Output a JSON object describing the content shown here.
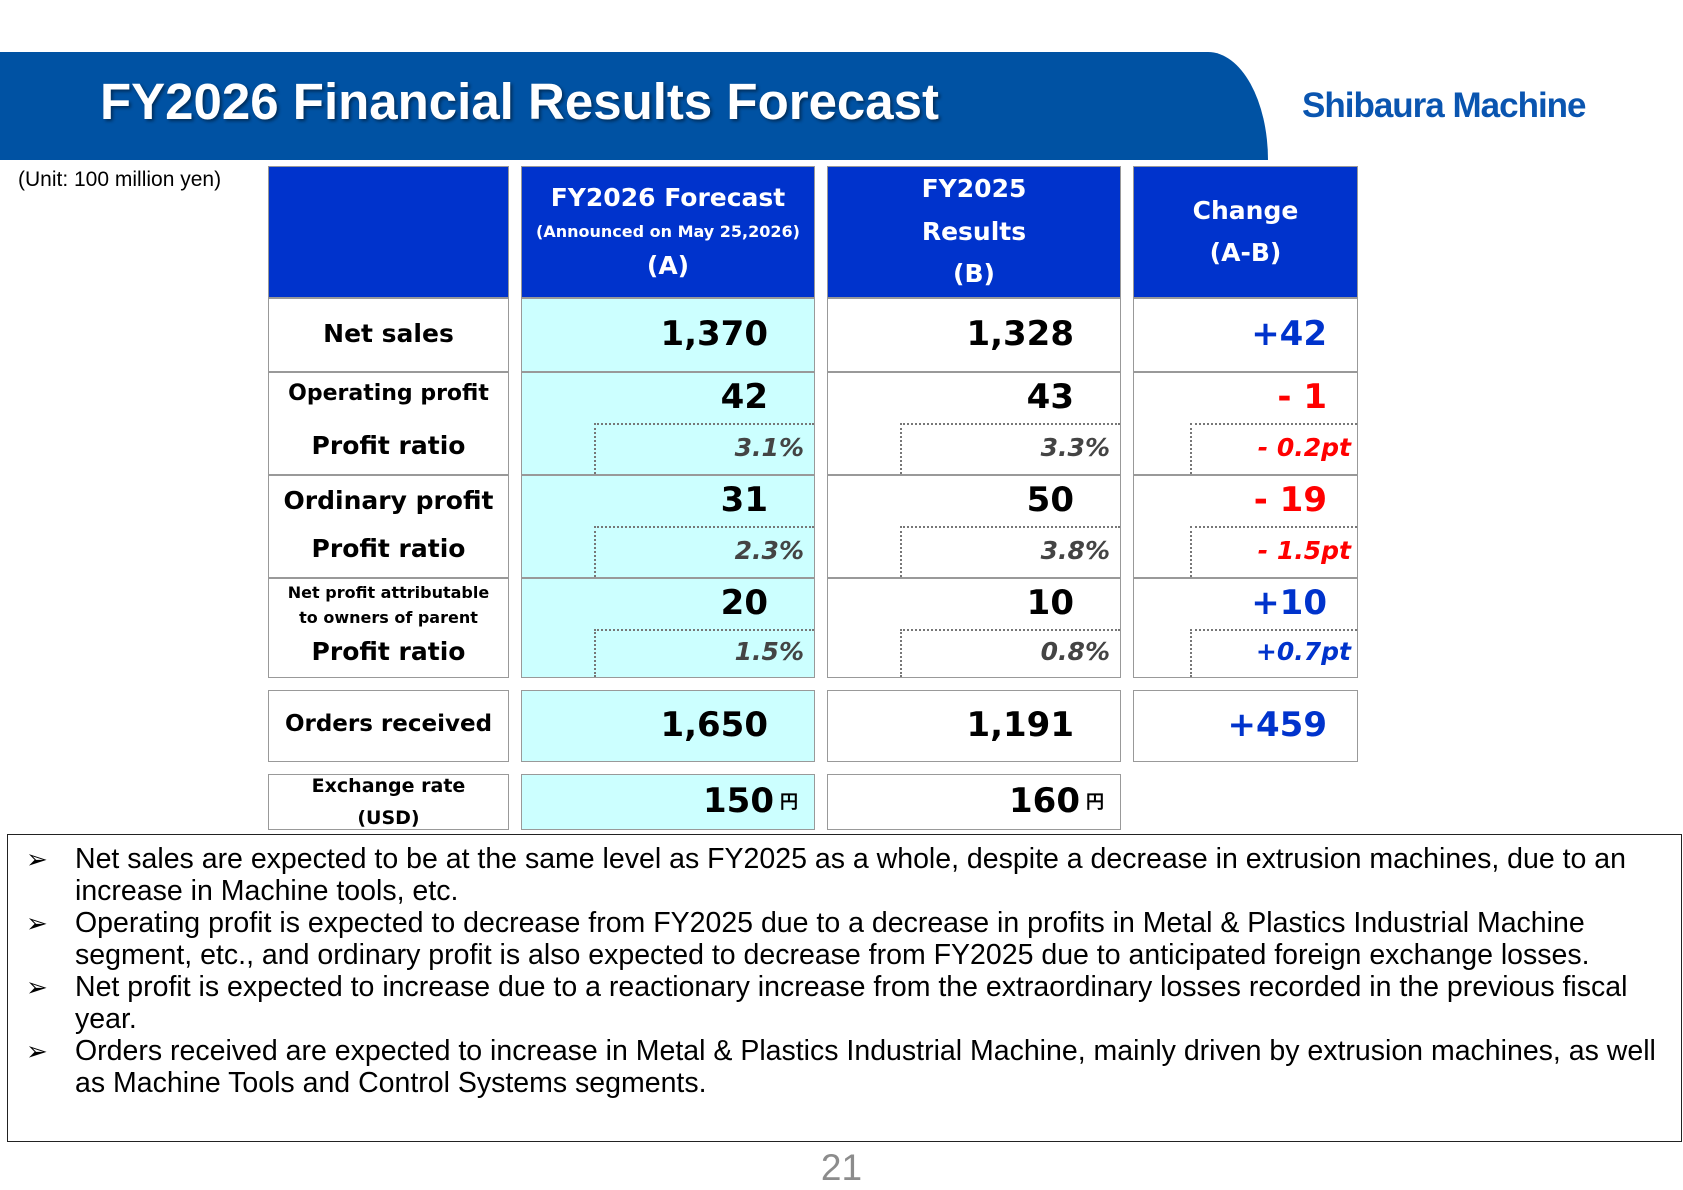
{
  "header": {
    "title": "FY2026 Financial Results Forecast",
    "logo_text": "Shibaura Machine",
    "banner_color": "#0052a3"
  },
  "unit_note": "(Unit: 100 million yen)",
  "columns": {
    "forecast": {
      "line1": "FY2026 Forecast",
      "line2": "(Announced on May 25,2026)",
      "line3": "(A)"
    },
    "results": {
      "line1": "FY2025",
      "line2": "Results",
      "line3": "(B)"
    },
    "change": {
      "line1": "Change",
      "line2": "(A-B)"
    }
  },
  "rows": {
    "net_sales": {
      "label": "Net sales",
      "a": "1,370",
      "b": "1,328",
      "change": "+42"
    },
    "operating_profit": {
      "label": "Operating profit",
      "a": "42",
      "b": "43",
      "change": "- 1",
      "ratio_label": "Profit ratio",
      "ratio_a": "3.1%",
      "ratio_b": "3.3%",
      "ratio_change": "- 0.2pt"
    },
    "ordinary_profit": {
      "label": "Ordinary profit",
      "a": "31",
      "b": "50",
      "change": "- 19",
      "ratio_label": "Profit ratio",
      "ratio_a": "2.3%",
      "ratio_b": "3.8%",
      "ratio_change": "- 1.5pt"
    },
    "net_profit": {
      "label_line1": "Net profit attributable",
      "label_line2": "to owners of parent",
      "a": "20",
      "b": "10",
      "change": "+10",
      "ratio_label": "Profit ratio",
      "ratio_a": "1.5%",
      "ratio_b": "0.8%",
      "ratio_change": "+0.7pt"
    },
    "orders": {
      "label": "Orders received",
      "a": "1,650",
      "b": "1,191",
      "change": "+459"
    },
    "exchange": {
      "label_line1": "Exchange rate",
      "label_line2": "(USD)",
      "a": "150",
      "b": "160",
      "yen": "円"
    }
  },
  "colors": {
    "header_blue": "#0033cc",
    "forecast_fill": "#ccffff",
    "positive": "#0033cc",
    "negative": "#ff0000"
  },
  "notes": [
    {
      "bullet": "➢",
      "text": "Net sales are expected to be at the same level as FY2025 as a whole, despite a decrease in extrusion machines, due to an increase in Machine tools, etc."
    },
    {
      "bullet": "➢",
      "text": "Operating profit is expected to decrease from FY2025 due to a decrease in profits in Metal & Plastics Industrial Machine segment, etc., and ordinary profit is also expected to decrease from FY2025 due to anticipated foreign exchange losses."
    },
    {
      "bullet": "➢",
      "text": "Net profit is expected to increase due to a reactionary increase from the extraordinary losses recorded in the previous fiscal year."
    },
    {
      "bullet": "➢",
      "text": "Orders received are expected to increase in Metal & Plastics Industrial Machine, mainly driven by extrusion machines, as well as Machine Tools and Control Systems segments."
    }
  ],
  "page_number": "21"
}
